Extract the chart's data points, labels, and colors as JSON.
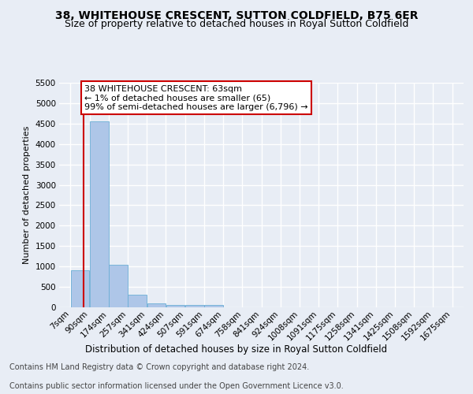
{
  "title_line1": "38, WHITEHOUSE CRESCENT, SUTTON COLDFIELD, B75 6ER",
  "title_line2": "Size of property relative to detached houses in Royal Sutton Coldfield",
  "xlabel": "Distribution of detached houses by size in Royal Sutton Coldfield",
  "ylabel": "Number of detached properties",
  "bin_labels": [
    "7sqm",
    "90sqm",
    "174sqm",
    "257sqm",
    "341sqm",
    "424sqm",
    "507sqm",
    "591sqm",
    "674sqm",
    "758sqm",
    "841sqm",
    "924sqm",
    "1008sqm",
    "1091sqm",
    "1175sqm",
    "1258sqm",
    "1341sqm",
    "1425sqm",
    "1508sqm",
    "1592sqm",
    "1675sqm"
  ],
  "bin_edges": [
    7,
    90,
    174,
    257,
    341,
    424,
    507,
    591,
    674,
    758,
    841,
    924,
    1008,
    1091,
    1175,
    1258,
    1341,
    1425,
    1508,
    1592,
    1675
  ],
  "bar_heights": [
    900,
    4550,
    1050,
    300,
    90,
    60,
    50,
    50,
    0,
    0,
    0,
    0,
    0,
    0,
    0,
    0,
    0,
    0,
    0,
    0
  ],
  "bar_color": "#aec6e8",
  "bar_edgecolor": "#6baed6",
  "property_size": 63,
  "property_line_color": "#cc0000",
  "annotation_line1": "38 WHITEHOUSE CRESCENT: 63sqm",
  "annotation_line2": "← 1% of detached houses are smaller (65)",
  "annotation_line3": "99% of semi-detached houses are larger (6,796) →",
  "annotation_box_facecolor": "#ffffff",
  "annotation_box_edgecolor": "#cc0000",
  "ylim": [
    0,
    5500
  ],
  "yticks": [
    0,
    500,
    1000,
    1500,
    2000,
    2500,
    3000,
    3500,
    4000,
    4500,
    5000,
    5500
  ],
  "background_color": "#e8edf5",
  "grid_color": "#ffffff",
  "footer_line1": "Contains HM Land Registry data © Crown copyright and database right 2024.",
  "footer_line2": "Contains public sector information licensed under the Open Government Licence v3.0.",
  "title_fontsize": 10,
  "subtitle_fontsize": 9,
  "ylabel_fontsize": 8,
  "xlabel_fontsize": 8.5,
  "tick_fontsize": 7.5,
  "annotation_fontsize": 8,
  "footer_fontsize": 7
}
